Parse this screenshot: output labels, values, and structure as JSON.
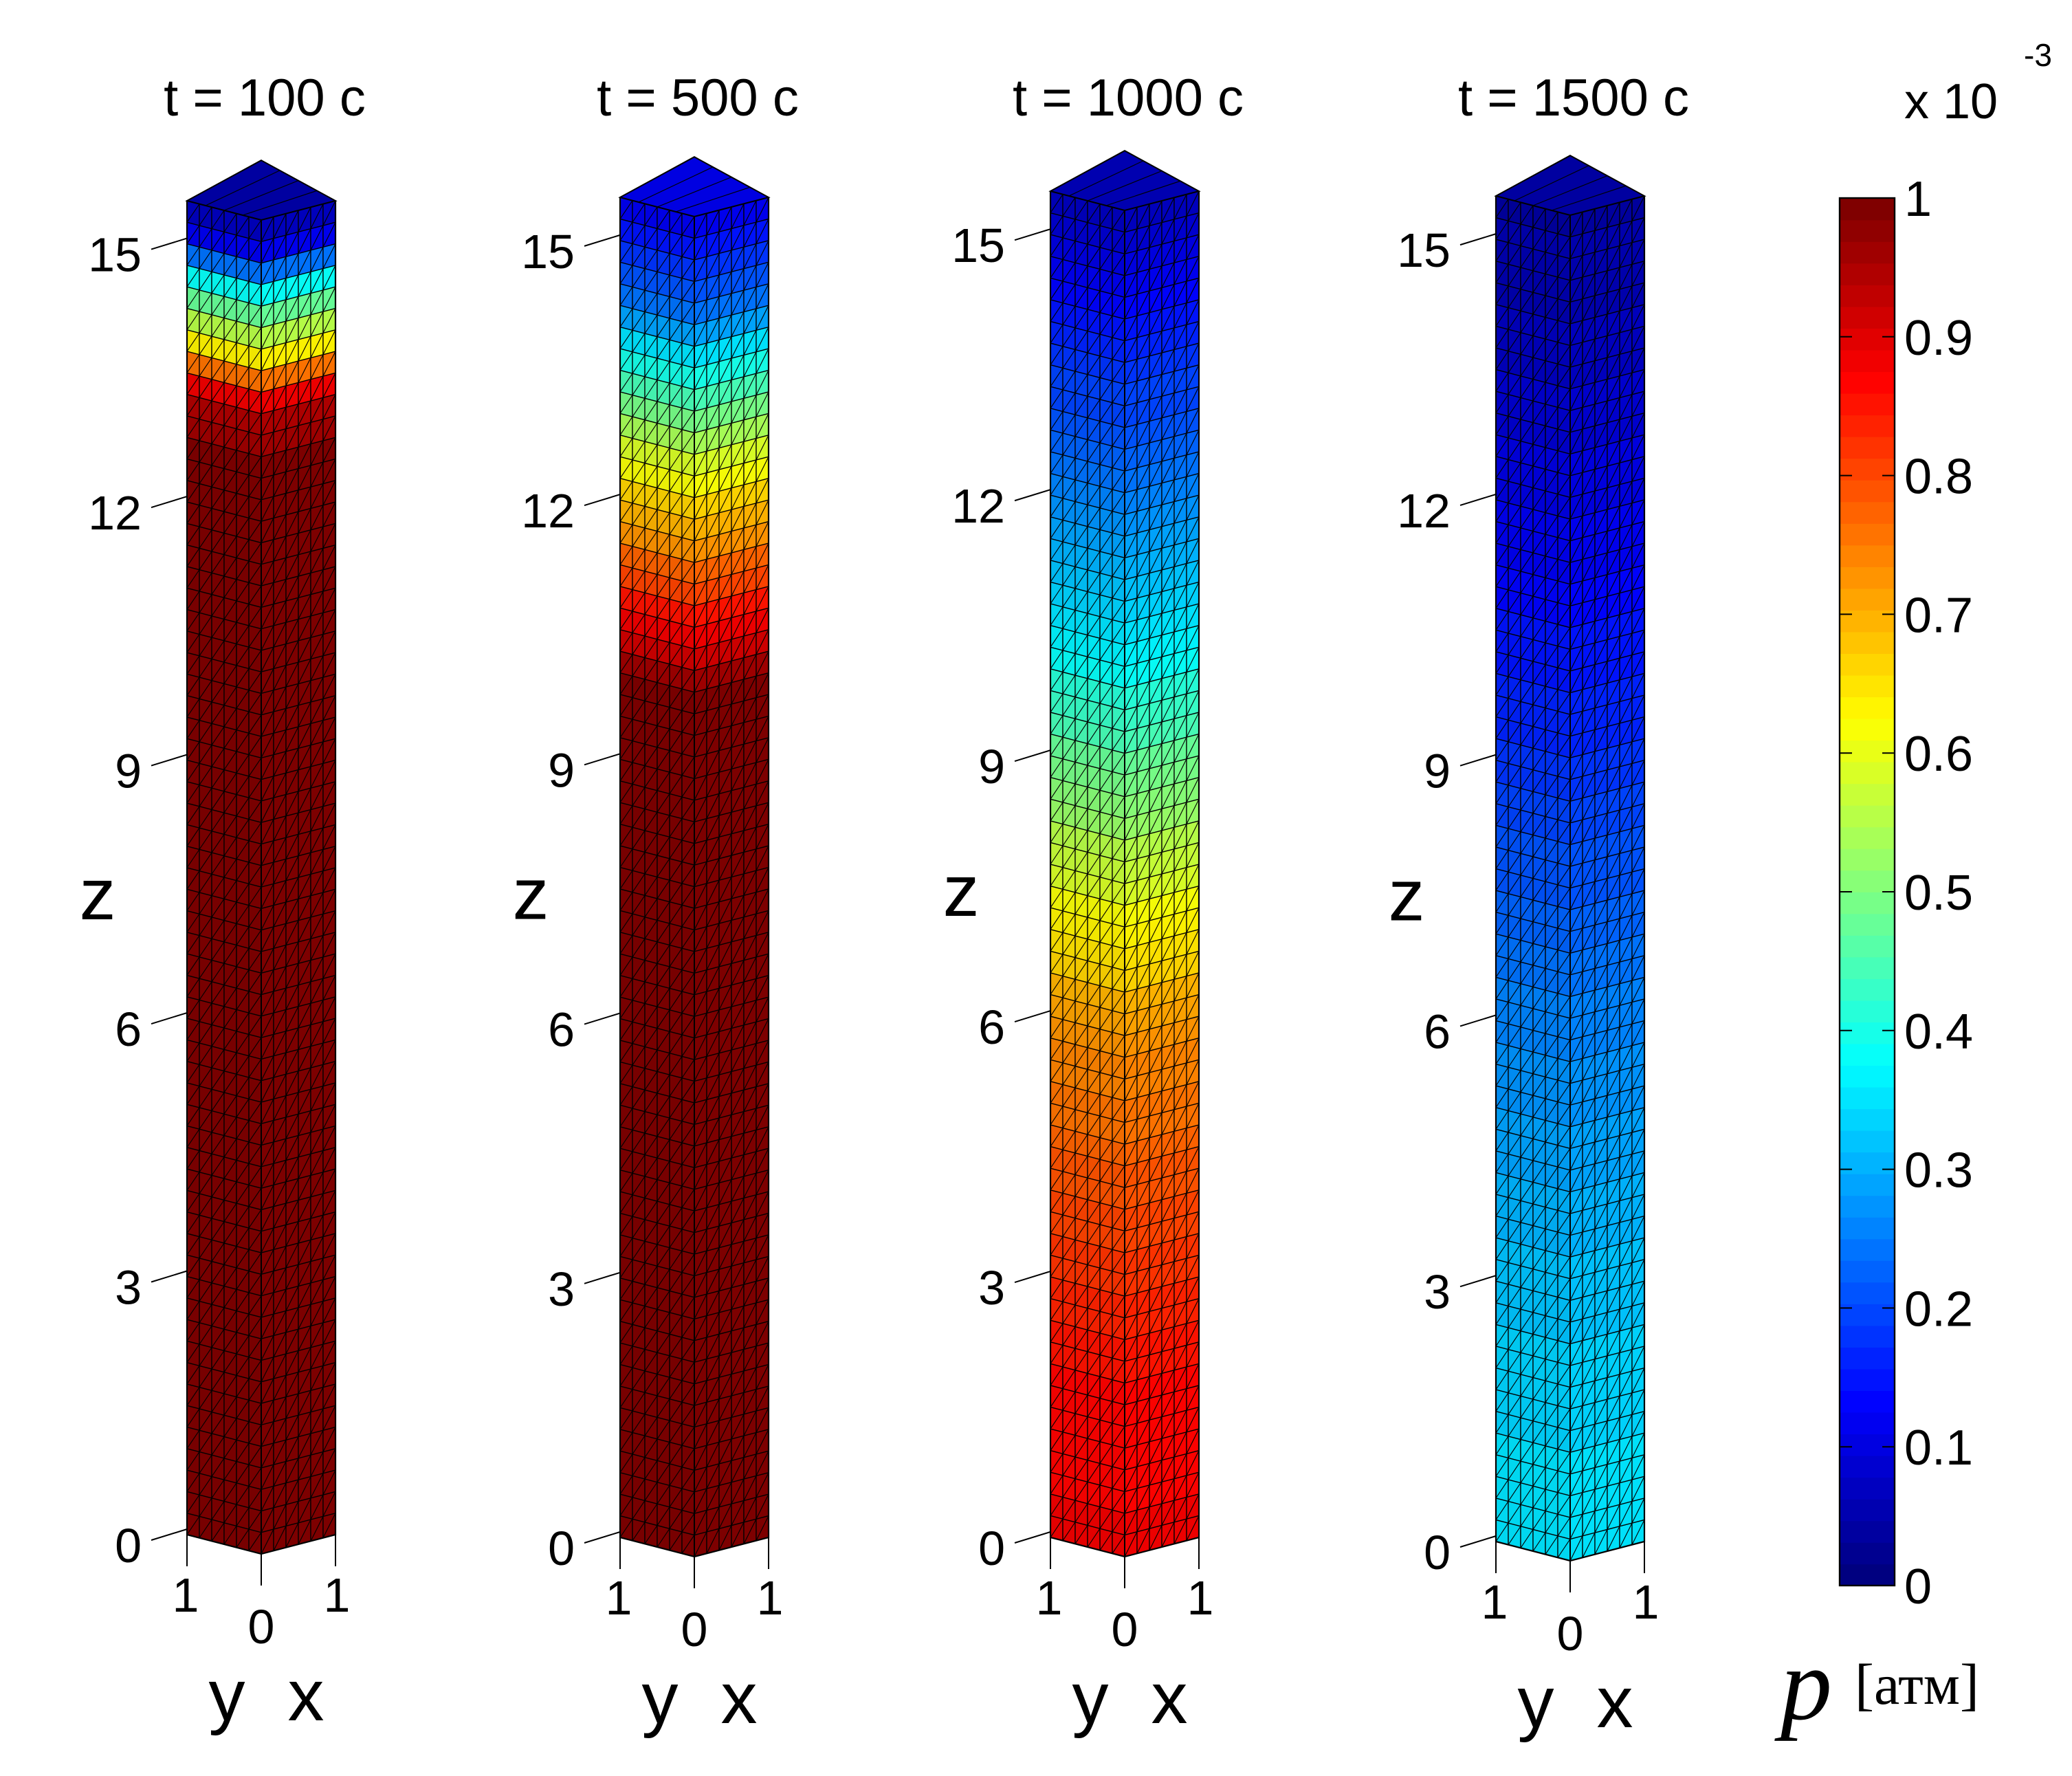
{
  "chart_data": {
    "type": "heatmap",
    "colormap": "jet",
    "color_levels": 64,
    "panels": [
      {
        "title": "t = 100 c",
        "zlabel": "z",
        "ylabel": "y",
        "xlabel": "x",
        "zticks": [
          "0",
          "3",
          "6",
          "9",
          "12",
          "15"
        ],
        "yticks": [
          "1",
          "0"
        ],
        "xticks": [
          "0",
          "1"
        ],
        "zlim": [
          0,
          15.5
        ],
        "profile": {
          "z": [
            0,
            12.5,
            13.3,
            13.9,
            14.6,
            15.1,
            15.5
          ],
          "p": [
            1.0,
            1.0,
            0.92,
            0.62,
            0.4,
            0.12,
            0.04
          ]
        }
      },
      {
        "title": "t = 500 c",
        "zlabel": "z",
        "ylabel": "y",
        "xlabel": "x",
        "zticks": [
          "0",
          "3",
          "6",
          "9",
          "12",
          "15"
        ],
        "yticks": [
          "1",
          "0"
        ],
        "xticks": [
          "0",
          "1"
        ],
        "zlim": [
          0,
          15.5
        ],
        "profile": {
          "z": [
            0,
            9.8,
            10.8,
            11.8,
            12.7,
            13.7,
            14.5,
            15.5
          ],
          "p": [
            1.0,
            1.0,
            0.86,
            0.7,
            0.58,
            0.38,
            0.22,
            0.1
          ]
        }
      },
      {
        "title": "t = 1000 c",
        "zlabel": "z",
        "ylabel": "y",
        "xlabel": "x",
        "zticks": [
          "0",
          "3",
          "6",
          "9",
          "12",
          "15"
        ],
        "yticks": [
          "1",
          "0"
        ],
        "xticks": [
          "0",
          "1"
        ],
        "zlim": [
          0,
          15.5
        ],
        "profile": {
          "z": [
            0,
            2,
            4,
            6,
            7.5,
            9,
            10.5,
            12,
            13.5,
            15.5
          ],
          "p": [
            0.88,
            0.86,
            0.8,
            0.72,
            0.6,
            0.48,
            0.36,
            0.27,
            0.18,
            0.06
          ]
        }
      },
      {
        "title": "t = 1500 c",
        "zlabel": "z",
        "ylabel": "y",
        "xlabel": "x",
        "zticks": [
          "0",
          "3",
          "6",
          "9",
          "12",
          "15"
        ],
        "yticks": [
          "1",
          "0"
        ],
        "xticks": [
          "0",
          "1"
        ],
        "zlim": [
          0,
          15.5
        ],
        "profile": {
          "z": [
            0,
            3,
            6,
            9,
            12,
            15.5
          ],
          "p": [
            0.36,
            0.32,
            0.26,
            0.18,
            0.11,
            0.04
          ]
        }
      }
    ],
    "colorbar": {
      "ticks": [
        "0",
        "0.1",
        "0.2",
        "0.3",
        "0.4",
        "0.5",
        "0.6",
        "0.7",
        "0.8",
        "0.9",
        "1"
      ],
      "tick_values": [
        0,
        0.1,
        0.2,
        0.3,
        0.4,
        0.5,
        0.6,
        0.7,
        0.8,
        0.9,
        1.0
      ],
      "range": [
        0,
        1
      ],
      "multiplier": "x 10",
      "multiplier_exponent": "-3",
      "label_symbol": "p",
      "label_unit": "[атм]"
    }
  }
}
